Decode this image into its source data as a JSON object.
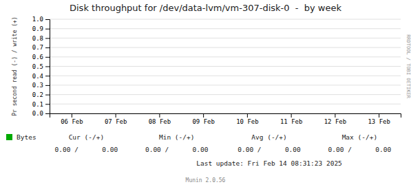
{
  "chart_data": {
    "type": "line",
    "title": "Disk throughput for /dev/data-lvm/vm-307-disk-0  -  by week",
    "y_label": "Pr second read (-) / write (+)",
    "categories": [
      "06 Feb",
      "07 Feb",
      "08 Feb",
      "09 Feb",
      "10 Feb",
      "11 Feb",
      "12 Feb",
      "13 Feb"
    ],
    "series": [
      {
        "name": "Bytes",
        "color": "#00aa00"
      }
    ],
    "ylim": [
      0.0,
      1.0
    ],
    "yticks": [
      {
        "value": 0.0,
        "label": "0.0"
      },
      {
        "value": 0.1,
        "label": "0.1"
      },
      {
        "value": 0.2,
        "label": "0.2"
      },
      {
        "value": 0.3,
        "label": "0.3"
      },
      {
        "value": 0.4,
        "label": "0.4"
      },
      {
        "value": 0.5,
        "label": "0.5"
      },
      {
        "value": 0.6,
        "label": "0.6"
      },
      {
        "value": 0.7,
        "label": "0.7"
      },
      {
        "value": 0.8,
        "label": "0.8"
      },
      {
        "value": 0.9,
        "label": "0.9"
      },
      {
        "value": 1.0,
        "label": "1.0"
      }
    ],
    "grid": true,
    "legend": "bottom-left",
    "annotations": [
      "Cur (-/+)",
      "Min (-/+)",
      "Avg (-/+)",
      "Max (-/+)",
      "0.00 /      0.00",
      "0.00 /      0.00",
      "0.00 /      0.00",
      "0.00 /      0.00",
      "Last update: Fri Feb 14 08:31:23 2025",
      "Munin 2.0.56",
      "RRDTOOL / TOBI OETIKER"
    ]
  }
}
